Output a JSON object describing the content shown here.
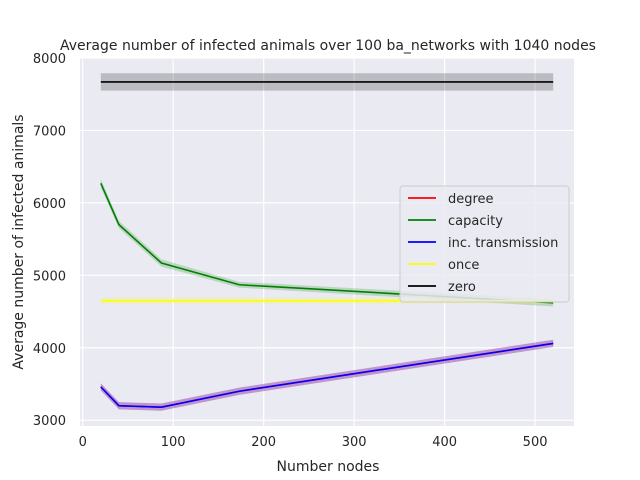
{
  "chart_data": {
    "type": "line",
    "title": "Average number of infected animals over 100 ba_networks with 1040 nodes",
    "xlabel": "Number nodes",
    "ylabel": "Average number of infected animals",
    "xlim": [
      -3,
      543
    ],
    "ylim": [
      2920,
      8000
    ],
    "xticks": [
      0,
      100,
      200,
      300,
      400,
      500
    ],
    "yticks": [
      3000,
      4000,
      5000,
      6000,
      7000,
      8000
    ],
    "grid": true,
    "legend_position": "center-right",
    "x": [
      20,
      40,
      87,
      173,
      520
    ],
    "series": [
      {
        "name": "degree",
        "color": "#ff0000",
        "values": [
          3460,
          3200,
          3180,
          3400,
          4060
        ],
        "band_lower": [
          3410,
          3150,
          3130,
          3350,
          4010
        ],
        "band_upper": [
          3510,
          3250,
          3230,
          3450,
          4110
        ]
      },
      {
        "name": "capacity",
        "color": "#008000",
        "values": [
          6270,
          5700,
          5170,
          4870,
          4620
        ],
        "band_lower": [
          6210,
          5650,
          5120,
          4830,
          4570
        ],
        "band_upper": [
          6330,
          5750,
          5220,
          4910,
          4670
        ]
      },
      {
        "name": "inc. transmission",
        "color": "#0000ff",
        "values": [
          3460,
          3200,
          3180,
          3400,
          4060
        ],
        "band_lower": [
          3410,
          3150,
          3130,
          3350,
          4010
        ],
        "band_upper": [
          3510,
          3250,
          3230,
          3450,
          4110
        ]
      },
      {
        "name": "once",
        "color": "#ffff00",
        "values": [
          4650,
          4650,
          4650,
          4650,
          4650
        ],
        "band_lower": [
          4610,
          4610,
          4610,
          4610,
          4610
        ],
        "band_upper": [
          4690,
          4690,
          4690,
          4690,
          4690
        ]
      },
      {
        "name": "zero",
        "color": "#000000",
        "values": [
          7670,
          7670,
          7670,
          7670,
          7670
        ],
        "band_lower": [
          7550,
          7550,
          7550,
          7550,
          7550
        ],
        "band_upper": [
          7790,
          7790,
          7790,
          7790,
          7790
        ]
      }
    ]
  }
}
